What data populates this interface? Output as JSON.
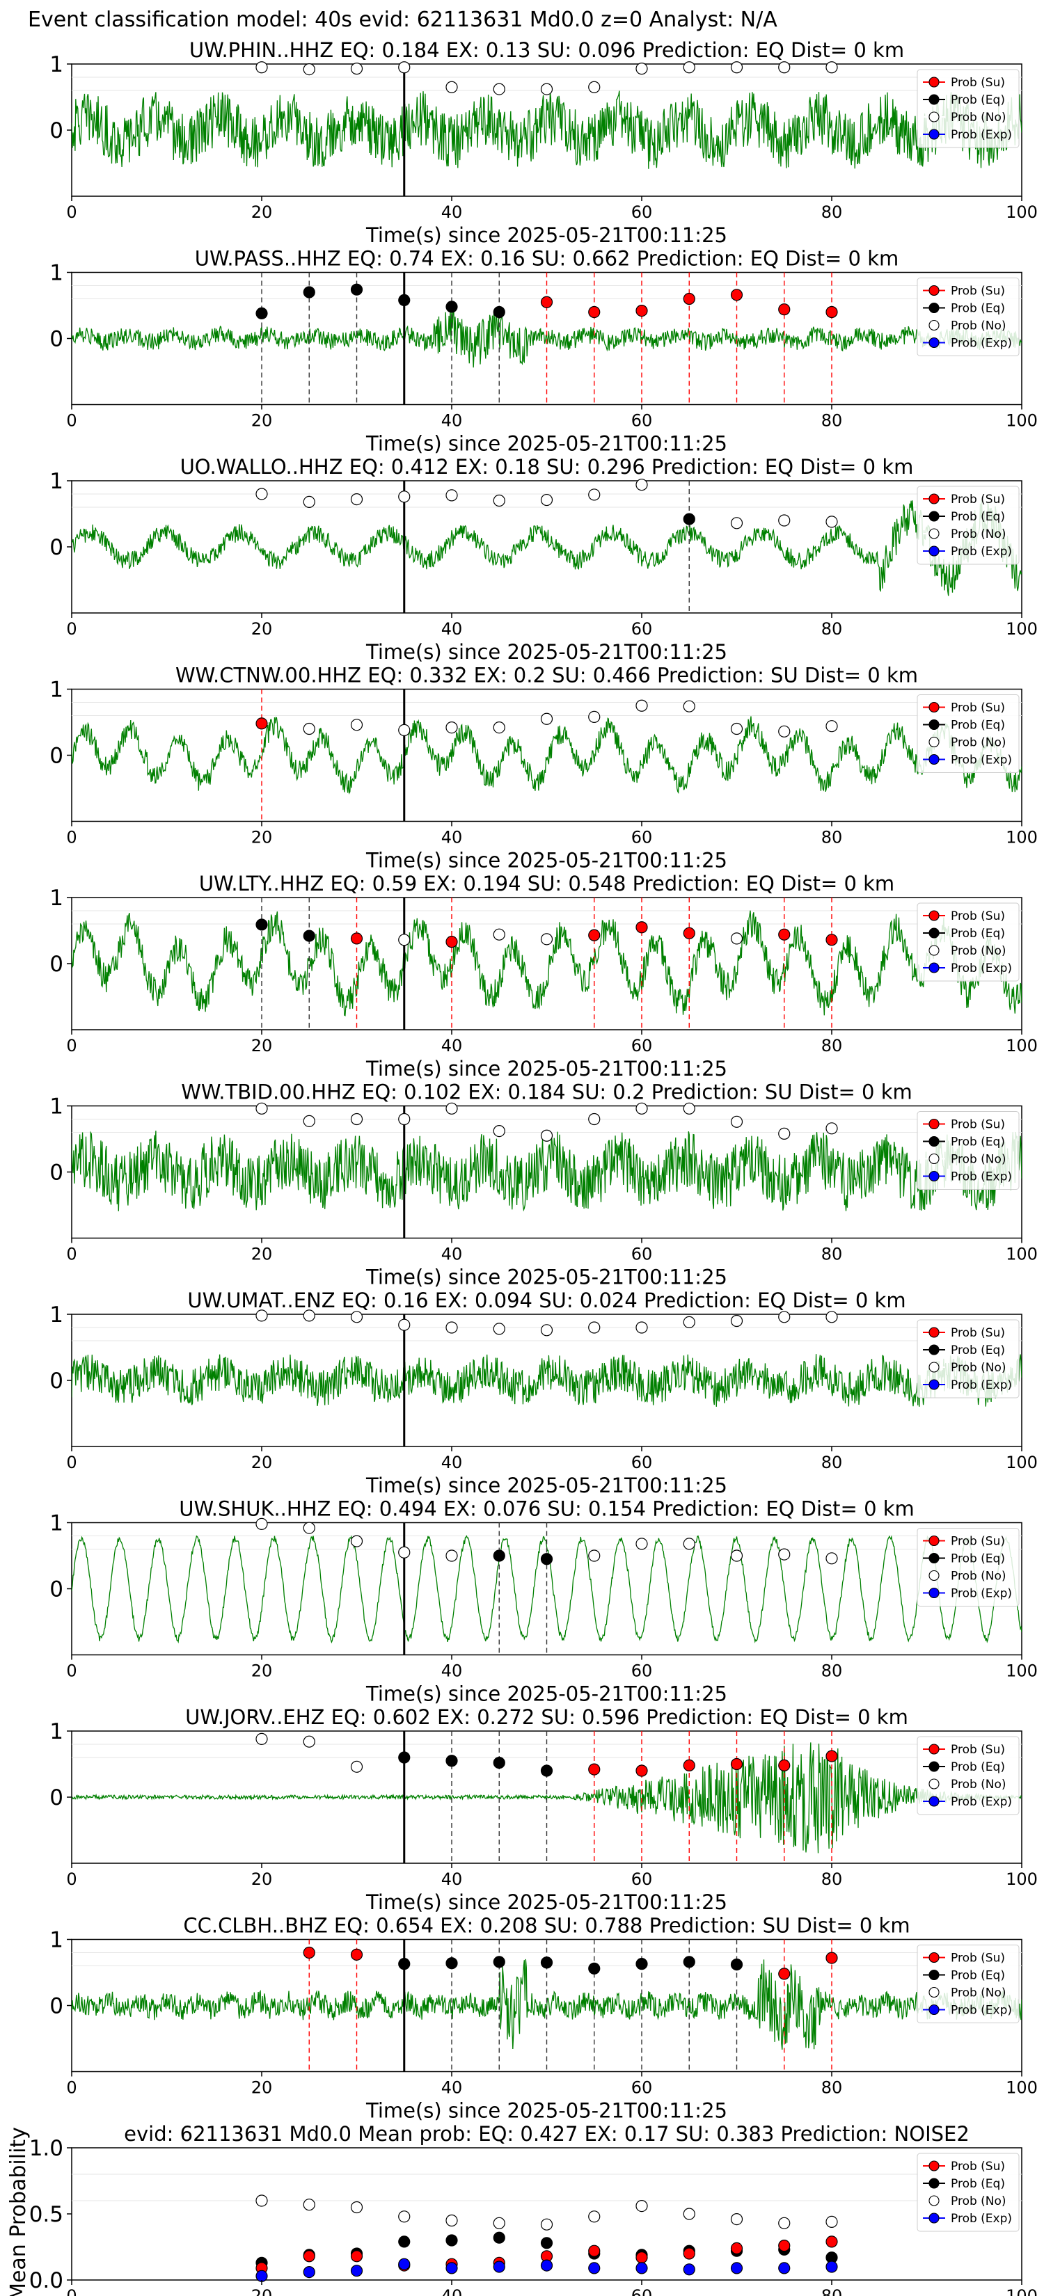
{
  "suptitle": "Event classification model: 40s evid: 62113631 Md0.0 z=0 Analyst: N/A",
  "xlabel": "Time(s) since 2025-05-21T00:11:25",
  "legend": [
    "Prob (Su)",
    "Prob (Eq)",
    "Prob (No)",
    "Prob (Exp)"
  ],
  "colors": {
    "su": "#ff0000",
    "eq": "#000000",
    "no": "#ffffff",
    "exp": "#0000ff",
    "trace": "#008000",
    "su_line": "#ff0000",
    "eq_line": "#333333"
  },
  "windows": [
    20,
    25,
    30,
    35,
    40,
    45,
    50,
    55,
    60,
    65,
    70,
    75,
    80
  ],
  "chart_data": [
    {
      "type": "scatter",
      "title": "UW.PHIN..HHZ   EQ: 0.184  EX: 0.13  SU: 0.096   Prediction: EQ    Dist= 0 km",
      "xlim": [
        0,
        100
      ],
      "ylim": [
        -1,
        1
      ],
      "yticks": [
        "1",
        "0"
      ],
      "xticks": [
        "0",
        "20",
        "40",
        "60",
        "80",
        "100"
      ],
      "trace": "noise",
      "amp": 0.52,
      "pick": 35,
      "points": [
        [
          "no",
          0.95
        ],
        [
          "no",
          0.92
        ],
        [
          "no",
          0.93
        ],
        [
          "no",
          0.95
        ],
        [
          "no",
          0.65
        ],
        [
          "no",
          0.62
        ],
        [
          "no",
          0.62
        ],
        [
          "no",
          0.65
        ],
        [
          "no",
          0.93
        ],
        [
          "no",
          0.95
        ],
        [
          "no",
          0.95
        ],
        [
          "no",
          0.95
        ],
        [
          "no",
          0.95
        ]
      ]
    },
    {
      "type": "scatter",
      "title": "UW.PASS..HHZ   EQ: 0.74  EX: 0.16  SU: 0.662   Prediction: EQ    Dist= 0 km",
      "xlim": [
        0,
        100
      ],
      "ylim": [
        -1,
        1
      ],
      "yticks": [
        "1",
        "0"
      ],
      "xticks": [
        "0",
        "20",
        "40",
        "60",
        "80",
        "100"
      ],
      "trace": "quiet",
      "amp": 0.22,
      "pick": 35,
      "points": [
        [
          "eq",
          0.38
        ],
        [
          "eq",
          0.7
        ],
        [
          "eq",
          0.74
        ],
        [
          "eq",
          0.58
        ],
        [
          "eq",
          0.48
        ],
        [
          "eq",
          0.4
        ],
        [
          "su",
          0.55
        ],
        [
          "su",
          0.4
        ],
        [
          "su",
          0.42
        ],
        [
          "su",
          0.6
        ],
        [
          "su",
          0.66
        ],
        [
          "su",
          0.44
        ],
        [
          "su",
          0.4
        ]
      ]
    },
    {
      "type": "scatter",
      "title": "UO.WALLO..HHZ   EQ: 0.412  EX: 0.18  SU: 0.296   Prediction: EQ    Dist= 0 km",
      "xlim": [
        0,
        100
      ],
      "ylim": [
        -1,
        1
      ],
      "yticks": [
        "1",
        "0"
      ],
      "xticks": [
        "0",
        "20",
        "40",
        "60",
        "80",
        "100"
      ],
      "trace": "growing",
      "amp": 0.3,
      "pick": 35,
      "points": [
        [
          "no",
          0.8
        ],
        [
          "no",
          0.68
        ],
        [
          "no",
          0.72
        ],
        [
          "no",
          0.76
        ],
        [
          "no",
          0.78
        ],
        [
          "no",
          0.7
        ],
        [
          "no",
          0.71
        ],
        [
          "no",
          0.79
        ],
        [
          "no",
          0.94
        ],
        [
          "eq",
          0.42
        ],
        [
          "no",
          0.36
        ],
        [
          "no",
          0.4
        ],
        [
          "no",
          0.38
        ]
      ]
    },
    {
      "type": "scatter",
      "title": "WW.CTNW.00.HHZ   EQ: 0.332  EX: 0.2  SU: 0.466   Prediction: SU    Dist= 0 km",
      "xlim": [
        0,
        100
      ],
      "ylim": [
        -1,
        1
      ],
      "yticks": [
        "1",
        "0"
      ],
      "xticks": [
        "0",
        "20",
        "40",
        "60",
        "80",
        "100"
      ],
      "trace": "wavy",
      "amp": 0.4,
      "pick": 35,
      "points": [
        [
          "su",
          0.48
        ],
        [
          "no",
          0.4
        ],
        [
          "no",
          0.46
        ],
        [
          "no",
          0.38
        ],
        [
          "no",
          0.42
        ],
        [
          "no",
          0.42
        ],
        [
          "no",
          0.55
        ],
        [
          "no",
          0.58
        ],
        [
          "no",
          0.75
        ],
        [
          "no",
          0.74
        ],
        [
          "no",
          0.4
        ],
        [
          "no",
          0.36
        ],
        [
          "no",
          0.44
        ]
      ]
    },
    {
      "type": "scatter",
      "title": "UW.LTY..HHZ   EQ: 0.59  EX: 0.194  SU: 0.548   Prediction: EQ    Dist= 0 km",
      "xlim": [
        0,
        100
      ],
      "ylim": [
        -1,
        1
      ],
      "yticks": [
        "1",
        "0"
      ],
      "xticks": [
        "0",
        "20",
        "40",
        "60",
        "80",
        "100"
      ],
      "trace": "wavy",
      "amp": 0.55,
      "pick": 35,
      "points": [
        [
          "eq",
          0.59
        ],
        [
          "eq",
          0.42
        ],
        [
          "su",
          0.38
        ],
        [
          "no",
          0.36
        ],
        [
          "su",
          0.33
        ],
        [
          "no",
          0.44
        ],
        [
          "no",
          0.37
        ],
        [
          "su",
          0.43
        ],
        [
          "su",
          0.55
        ],
        [
          "su",
          0.46
        ],
        [
          "no",
          0.38
        ],
        [
          "su",
          0.44
        ],
        [
          "su",
          0.36
        ]
      ]
    },
    {
      "type": "scatter",
      "title": "WW.TBID.00.HHZ   EQ: 0.102  EX: 0.184  SU: 0.2   Prediction: SU    Dist= 0 km",
      "xlim": [
        0,
        100
      ],
      "ylim": [
        -1,
        1
      ],
      "yticks": [
        "1",
        "0"
      ],
      "xticks": [
        "0",
        "20",
        "40",
        "60",
        "80",
        "100"
      ],
      "trace": "noise",
      "amp": 0.55,
      "pick": 35,
      "points": [
        [
          "no",
          0.96
        ],
        [
          "no",
          0.77
        ],
        [
          "no",
          0.8
        ],
        [
          "no",
          0.8
        ],
        [
          "no",
          0.96
        ],
        [
          "no",
          0.62
        ],
        [
          "no",
          0.55
        ],
        [
          "no",
          0.8
        ],
        [
          "no",
          0.96
        ],
        [
          "no",
          0.96
        ],
        [
          "no",
          0.76
        ],
        [
          "no",
          0.58
        ],
        [
          "no",
          0.66
        ]
      ]
    },
    {
      "type": "scatter",
      "title": "UW.UMAT..ENZ   EQ: 0.16  EX: 0.094  SU: 0.024   Prediction: EQ    Dist= 0 km",
      "xlim": [
        0,
        100
      ],
      "ylim": [
        -1,
        1
      ],
      "yticks": [
        "1",
        "0"
      ],
      "xticks": [
        "0",
        "20",
        "40",
        "60",
        "80",
        "100"
      ],
      "trace": "noise",
      "amp": 0.35,
      "pick": 35,
      "points": [
        [
          "no",
          0.98
        ],
        [
          "no",
          0.98
        ],
        [
          "no",
          0.96
        ],
        [
          "no",
          0.84
        ],
        [
          "no",
          0.8
        ],
        [
          "no",
          0.78
        ],
        [
          "no",
          0.76
        ],
        [
          "no",
          0.8
        ],
        [
          "no",
          0.8
        ],
        [
          "no",
          0.88
        ],
        [
          "no",
          0.9
        ],
        [
          "no",
          0.96
        ],
        [
          "no",
          0.96
        ]
      ]
    },
    {
      "type": "scatter",
      "title": "UW.SHUK..HHZ   EQ: 0.494  EX: 0.076  SU: 0.154   Prediction: EQ    Dist= 0 km",
      "xlim": [
        0,
        100
      ],
      "ylim": [
        -1,
        1
      ],
      "yticks": [
        "1",
        "0"
      ],
      "xticks": [
        "0",
        "20",
        "40",
        "60",
        "80",
        "100"
      ],
      "trace": "sine",
      "amp": 0.8,
      "pick": 35,
      "points": [
        [
          "no",
          0.98
        ],
        [
          "no",
          0.92
        ],
        [
          "no",
          0.72
        ],
        [
          "no",
          0.55
        ],
        [
          "no",
          0.5
        ],
        [
          "eq",
          0.5
        ],
        [
          "eq",
          0.45
        ],
        [
          "no",
          0.5
        ],
        [
          "no",
          0.68
        ],
        [
          "no",
          0.68
        ],
        [
          "no",
          0.5
        ],
        [
          "no",
          0.52
        ],
        [
          "no",
          0.46
        ]
      ]
    },
    {
      "type": "scatter",
      "title": "UW.JORV..EHZ   EQ: 0.602  EX: 0.272  SU: 0.596   Prediction: EQ    Dist= 0 km",
      "xlim": [
        0,
        100
      ],
      "ylim": [
        -1,
        1
      ],
      "yticks": [
        "1",
        "0"
      ],
      "xticks": [
        "0",
        "20",
        "40",
        "60",
        "80",
        "100"
      ],
      "trace": "event",
      "amp": 0.55,
      "pick": 35,
      "points": [
        [
          "no",
          0.88
        ],
        [
          "no",
          0.84
        ],
        [
          "no",
          0.46
        ],
        [
          "eq",
          0.6
        ],
        [
          "eq",
          0.55
        ],
        [
          "eq",
          0.52
        ],
        [
          "eq",
          0.4
        ],
        [
          "su",
          0.42
        ],
        [
          "su",
          0.4
        ],
        [
          "su",
          0.48
        ],
        [
          "su",
          0.5
        ],
        [
          "su",
          0.48
        ],
        [
          "su",
          0.62
        ]
      ]
    },
    {
      "type": "scatter",
      "title": "CC.CLBH..BHZ   EQ: 0.654  EX: 0.208  SU: 0.788   Prediction: SU    Dist= 0 km",
      "xlim": [
        0,
        100
      ],
      "ylim": [
        -1,
        1
      ],
      "yticks": [
        "1",
        "0"
      ],
      "xticks": [
        "0",
        "20",
        "40",
        "60",
        "80",
        "100"
      ],
      "trace": "bursts",
      "amp": 0.3,
      "pick": 35,
      "points": [
        null,
        [
          "su",
          0.8
        ],
        [
          "su",
          0.77
        ],
        [
          "eq",
          0.63
        ],
        [
          "eq",
          0.64
        ],
        [
          "eq",
          0.66
        ],
        [
          "eq",
          0.65
        ],
        [
          "eq",
          0.56
        ],
        [
          "eq",
          0.63
        ],
        [
          "eq",
          0.66
        ],
        [
          "eq",
          0.62
        ],
        [
          "su",
          0.48
        ],
        [
          "su",
          0.72
        ]
      ]
    },
    {
      "type": "scatter",
      "title": "evid: 62113631  Md0.0   Mean prob:   EQ: 0.427  EX: 0.17  SU: 0.383   Prediction: NOISE2",
      "ylabel": "Mean Probability",
      "xlim": [
        0,
        100
      ],
      "ylim": [
        0,
        1
      ],
      "yticks": [
        "1.0",
        "0.5",
        "0.0"
      ],
      "xticks": [
        "0",
        "20",
        "40",
        "60",
        "80",
        "100"
      ],
      "x": [
        20,
        25,
        30,
        35,
        40,
        45,
        50,
        55,
        60,
        65,
        70,
        75,
        80
      ],
      "series": [
        {
          "name": "Prob (No)",
          "values": [
            0.6,
            0.57,
            0.55,
            0.48,
            0.45,
            0.43,
            0.42,
            0.48,
            0.56,
            0.5,
            0.46,
            0.43,
            0.44
          ]
        },
        {
          "name": "Prob (Eq)",
          "values": [
            0.13,
            0.19,
            0.2,
            0.29,
            0.3,
            0.32,
            0.28,
            0.2,
            0.19,
            0.22,
            0.22,
            0.23,
            0.17
          ]
        },
        {
          "name": "Prob (Su)",
          "values": [
            0.09,
            0.18,
            0.18,
            0.11,
            0.12,
            0.13,
            0.18,
            0.22,
            0.17,
            0.2,
            0.24,
            0.26,
            0.29
          ]
        },
        {
          "name": "Prob (Exp)",
          "values": [
            0.03,
            0.06,
            0.07,
            0.12,
            0.09,
            0.1,
            0.11,
            0.09,
            0.09,
            0.08,
            0.09,
            0.09,
            0.1
          ]
        }
      ]
    }
  ]
}
